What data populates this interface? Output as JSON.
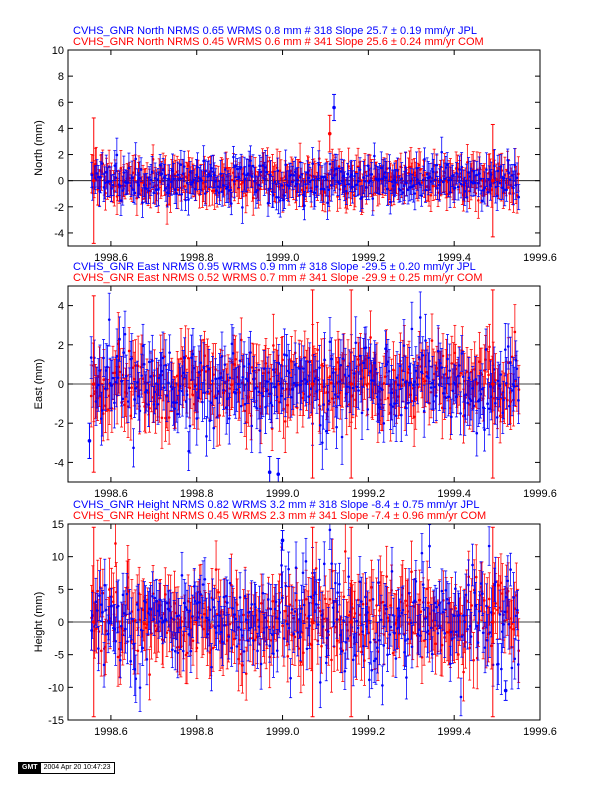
{
  "colors": {
    "series1": "#0000ff",
    "series2": "#ff0000",
    "axis": "#000000"
  },
  "footer": {
    "logo": "GMT",
    "timestamp": "2004 Apr 20 10:47:23"
  },
  "chart_data": [
    {
      "type": "scatter",
      "component": "North",
      "ylabel": "North (mm)",
      "ylim": [
        -5,
        10
      ],
      "yticks": [
        -4,
        -2,
        0,
        2,
        4,
        6,
        8,
        10
      ],
      "xlim": [
        1998.5,
        1999.6
      ],
      "xticks": [
        "1998.6",
        "1998.8",
        "1999.0",
        "1999.2",
        "1999.4",
        "1999.6"
      ],
      "title_lines": [
        "CVHS_GNR North NRMS 0.65 WRMS  0.8 mm # 318 Slope   25.7 ±  0.19 mm/yr JPL",
        "CVHS_GNR North NRMS 0.45 WRMS  0.6 mm # 341 Slope   25.6 ±  0.24 mm/yr COM"
      ],
      "series": [
        {
          "name": "JPL",
          "n": 318,
          "nrms": 0.65,
          "wrms_mm": 0.8,
          "slope": 25.7,
          "slope_sigma": 0.19,
          "x_range": [
            1998.555,
            1999.55
          ],
          "scatter_sd": 0.8,
          "sigma": [
            0.8,
            1.3
          ]
        },
        {
          "name": "COM",
          "n": 341,
          "nrms": 0.45,
          "wrms_mm": 0.6,
          "slope": 25.6,
          "slope_sigma": 0.24,
          "x_range": [
            1998.555,
            1999.55
          ],
          "scatter_sd": 0.65,
          "sigma": [
            1.0,
            1.5
          ]
        }
      ],
      "highlights": [
        {
          "series": "JPL",
          "x": 1999.12,
          "y": 5.6,
          "err": 1.0
        },
        {
          "series": "COM",
          "x": 1998.56,
          "y": 0.0,
          "err": 4.8
        },
        {
          "series": "COM",
          "x": 1999.49,
          "y": 0.0,
          "err": 4.3
        },
        {
          "series": "COM",
          "x": 1999.11,
          "y": 3.6,
          "err": 1.4
        }
      ]
    },
    {
      "type": "scatter",
      "component": "East",
      "ylabel": "East (mm)",
      "ylim": [
        -5,
        5
      ],
      "yticks": [
        -4,
        -2,
        0,
        2,
        4
      ],
      "xlim": [
        1998.5,
        1999.6
      ],
      "xticks": [
        "1998.6",
        "1998.8",
        "1999.0",
        "1999.2",
        "1999.4",
        "1999.6"
      ],
      "title_lines": [
        "CVHS_GNR East NRMS 0.95 WRMS  0.9 mm # 318 Slope  -29.5 ±  0.20 mm/yr JPL",
        "CVHS_GNR East NRMS 0.52 WRMS  0.7 mm # 341 Slope  -29.9 ±  0.25 mm/yr COM"
      ],
      "series": [
        {
          "name": "JPL",
          "n": 318,
          "nrms": 0.95,
          "wrms_mm": 0.9,
          "slope": -29.5,
          "slope_sigma": 0.2,
          "x_range": [
            1998.555,
            1999.55
          ],
          "scatter_sd": 1.1,
          "sigma": [
            0.9,
            1.4
          ]
        },
        {
          "name": "COM",
          "n": 341,
          "nrms": 0.52,
          "wrms_mm": 0.7,
          "slope": -29.9,
          "slope_sigma": 0.25,
          "x_range": [
            1998.555,
            1999.55
          ],
          "scatter_sd": 0.85,
          "sigma": [
            1.1,
            1.6
          ]
        }
      ],
      "highlights": [
        {
          "series": "COM",
          "x": 1999.07,
          "y": 0.0,
          "err": 4.8
        },
        {
          "series": "COM",
          "x": 1999.16,
          "y": 0.0,
          "err": 4.8
        },
        {
          "series": "COM",
          "x": 1999.49,
          "y": 0.0,
          "err": 4.8
        },
        {
          "series": "COM",
          "x": 1998.56,
          "y": 0.0,
          "err": 4.5
        },
        {
          "series": "JPL",
          "x": 1998.55,
          "y": -2.9,
          "err": 0.9
        },
        {
          "series": "JPL",
          "x": 1998.99,
          "y": -4.6,
          "err": 0.8
        },
        {
          "series": "JPL",
          "x": 1998.97,
          "y": -4.5,
          "err": 0.8
        }
      ]
    },
    {
      "type": "scatter",
      "component": "Height",
      "ylabel": "Height (mm)",
      "ylim": [
        -15,
        15
      ],
      "yticks": [
        -15,
        -10,
        -5,
        0,
        5,
        10,
        15
      ],
      "xlim": [
        1998.5,
        1999.6
      ],
      "xticks": [
        "1998.6",
        "1998.8",
        "1999.0",
        "1999.2",
        "1999.4",
        "1999.6"
      ],
      "title_lines": [
        "CVHS_GNR Height NRMS 0.82 WRMS  3.2 mm # 318 Slope   -8.4 ±  0.75 mm/yr JPL",
        "CVHS_GNR Height NRMS 0.45 WRMS  2.3 mm # 341 Slope   -7.4 ±  0.96 mm/yr COM"
      ],
      "series": [
        {
          "name": "JPL",
          "n": 318,
          "nrms": 0.82,
          "wrms_mm": 3.2,
          "slope": -8.4,
          "slope_sigma": 0.75,
          "x_range": [
            1998.555,
            1999.55
          ],
          "scatter_sd": 4.0,
          "sigma": [
            2.5,
            4.0
          ]
        },
        {
          "name": "COM",
          "n": 341,
          "nrms": 0.45,
          "wrms_mm": 2.3,
          "slope": -7.4,
          "slope_sigma": 0.96,
          "x_range": [
            1998.555,
            1999.55
          ],
          "scatter_sd": 3.3,
          "sigma": [
            3.5,
            5.0
          ]
        }
      ],
      "highlights": [
        {
          "series": "COM",
          "x": 1998.56,
          "y": 0.0,
          "err": 14.5
        },
        {
          "series": "COM",
          "x": 1999.07,
          "y": 0.0,
          "err": 14.5
        },
        {
          "series": "COM",
          "x": 1999.16,
          "y": 0.0,
          "err": 14.5
        },
        {
          "series": "COM",
          "x": 1999.49,
          "y": 0.0,
          "err": 14.5
        },
        {
          "series": "JPL",
          "x": 1999.0,
          "y": 12.5,
          "err": 1.5
        },
        {
          "series": "JPL",
          "x": 1999.52,
          "y": -10.5,
          "err": 1.5
        }
      ]
    }
  ]
}
